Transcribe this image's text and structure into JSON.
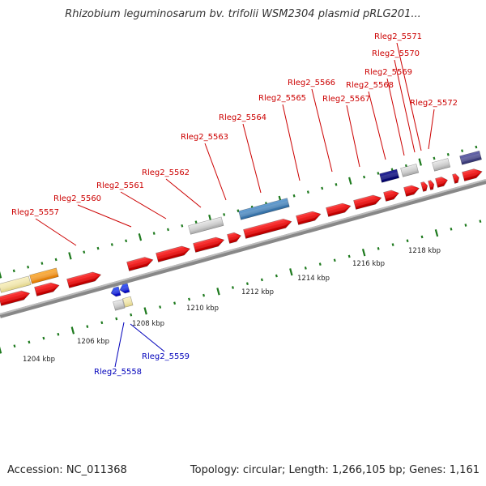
{
  "title": "Rhizobium leguminosarum bv. trifolii WSM2304 plasmid pRLG201...",
  "footer": {
    "accession": "Accession: NC_011368",
    "topology": "Topology: circular; Length: 1,266,105 bp; Genes: 1,161"
  },
  "scale_labels": [
    "1204 kbp",
    "1206 kbp",
    "1208 kbp",
    "1210 kbp",
    "1212 kbp",
    "1214 kbp",
    "1216 kbp",
    "1218 kbp"
  ],
  "forward_gene_labels": [
    "Rleg2_5557",
    "Rleg2_5560",
    "Rleg2_5561",
    "Rleg2_5562",
    "Rleg2_5563",
    "Rleg2_5564",
    "Rleg2_5565",
    "Rleg2_5566",
    "Rleg2_5567",
    "Rleg2_5568",
    "Rleg2_5569",
    "Rleg2_5570",
    "Rleg2_5571",
    "Rleg2_5572"
  ],
  "reverse_gene_labels": [
    "Rleg2_5558",
    "Rleg2_5559"
  ],
  "colors": {
    "forward_gene": "#e00000",
    "reverse_gene": "#0000cc",
    "forward_label": "#cc0000",
    "reverse_label": "#0000bb",
    "tick": "#1e7a1e",
    "backbone": "#999999"
  }
}
